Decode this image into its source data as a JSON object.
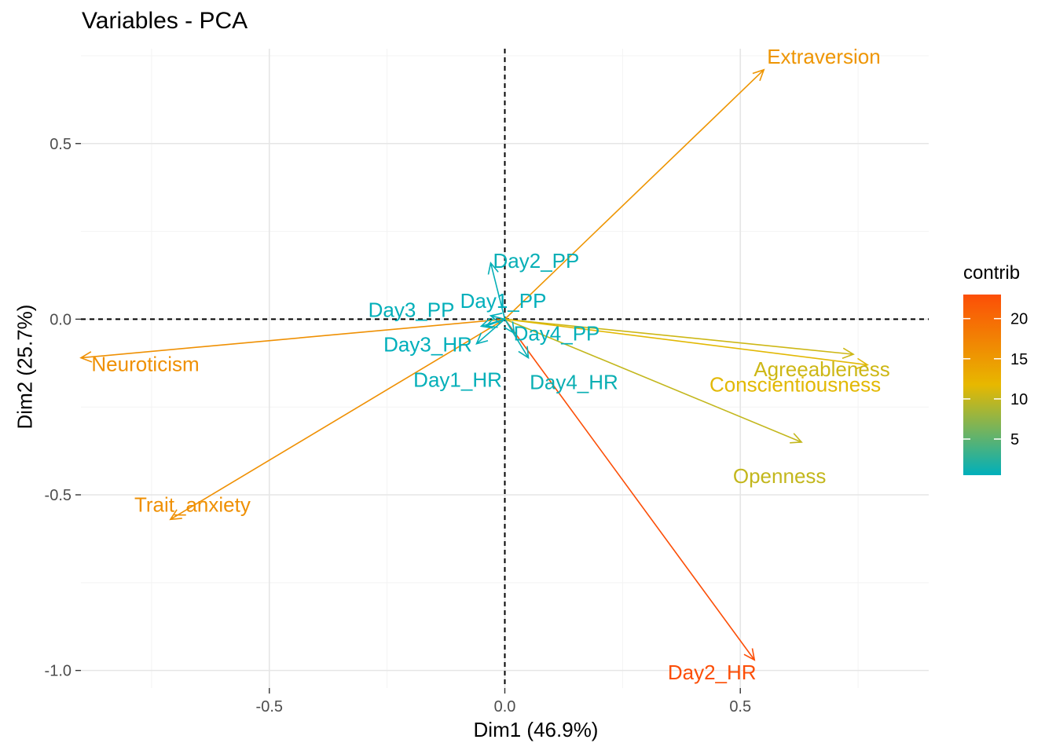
{
  "chart_data": {
    "type": "scatter",
    "title": "Variables - PCA",
    "xlabel": "Dim1 (46.9%)",
    "ylabel": "Dim2 (25.7%)",
    "xlim": [
      -0.9,
      0.9
    ],
    "ylim": [
      -1.05,
      0.77
    ],
    "x_ticks": [
      -0.5,
      0.0,
      0.5
    ],
    "x_tick_labels": [
      "-0.5",
      "0.0",
      "0.5"
    ],
    "y_ticks": [
      -1.0,
      -0.5,
      0.0,
      0.5
    ],
    "y_tick_labels": [
      "-1.0",
      "-0.5",
      "0.0",
      "0.5"
    ],
    "grid": true,
    "legend": {
      "title": "contrib",
      "type": "gradient",
      "position": "right",
      "range": [
        0.5,
        23
      ],
      "ticks": [
        5,
        10,
        15,
        20
      ],
      "tick_labels": [
        "5",
        "10",
        "15",
        "20"
      ],
      "colors": [
        "#00AFBB",
        "#E7B800",
        "#FC4E07"
      ]
    },
    "variables": [
      {
        "name": "Extraversion",
        "x": 0.55,
        "y": 0.71,
        "contrib": 15.5
      },
      {
        "name": "Agreeableness",
        "x": 0.74,
        "y": -0.1,
        "contrib": 10.5
      },
      {
        "name": "Conscientiousness",
        "x": 0.77,
        "y": -0.13,
        "contrib": 11.5
      },
      {
        "name": "Openness",
        "x": 0.63,
        "y": -0.35,
        "contrib": 10.0
      },
      {
        "name": "Neuroticism",
        "x": -0.9,
        "y": -0.11,
        "contrib": 16.0
      },
      {
        "name": "Trait_anxiety",
        "x": -0.71,
        "y": -0.57,
        "contrib": 16.0
      },
      {
        "name": "Day2_HR",
        "x": 0.53,
        "y": -0.97,
        "contrib": 23.0
      },
      {
        "name": "Day2_PP",
        "x": -0.03,
        "y": 0.16,
        "contrib": 0.8
      },
      {
        "name": "Day1_PP",
        "x": -0.03,
        "y": 0.01,
        "contrib": 0.5
      },
      {
        "name": "Day3_PP",
        "x": -0.05,
        "y": -0.02,
        "contrib": 0.6
      },
      {
        "name": "Day3_HR",
        "x": -0.04,
        "y": -0.02,
        "contrib": 0.5
      },
      {
        "name": "Day1_HR",
        "x": -0.06,
        "y": -0.07,
        "contrib": 0.7
      },
      {
        "name": "Day4_PP",
        "x": 0.02,
        "y": -0.04,
        "contrib": 0.6
      },
      {
        "name": "Day4_HR",
        "x": 0.05,
        "y": -0.11,
        "contrib": 1.0
      }
    ]
  }
}
